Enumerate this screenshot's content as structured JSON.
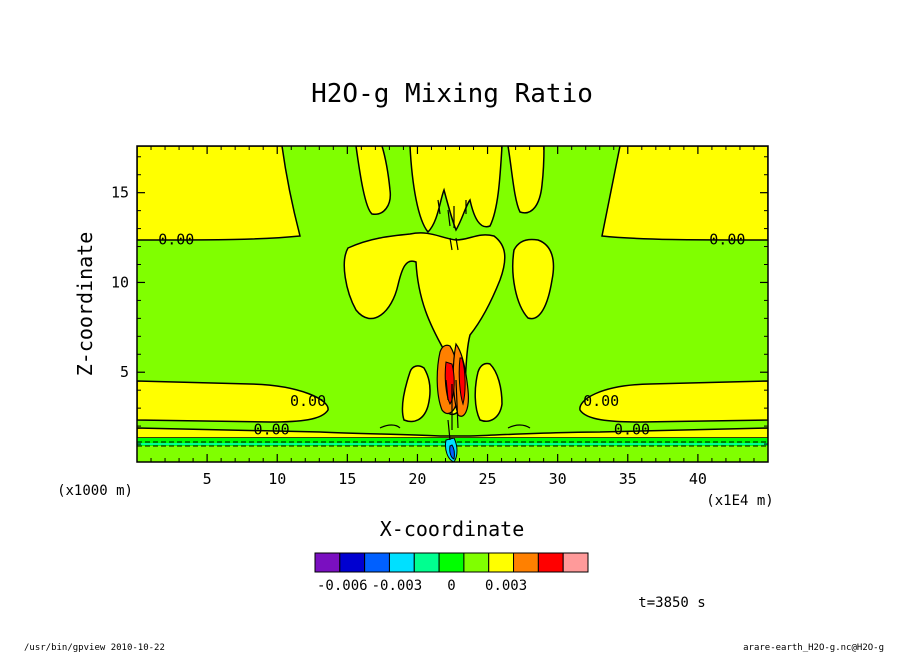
{
  "chart_data": {
    "type": "contour",
    "title": "H2O-g Mixing Ratio",
    "xlabel": "X-coordinate",
    "ylabel": "Z-coordinate",
    "x_unit": "(x1E4 m)",
    "y_unit": "(x1000 m)",
    "xlim": [
      0,
      45
    ],
    "ylim": [
      0,
      17.6
    ],
    "x_ticks": [
      "5",
      "10",
      "15",
      "20",
      "25",
      "30",
      "35",
      "40"
    ],
    "x_tick_values": [
      5,
      10,
      15,
      20,
      25,
      30,
      35,
      40
    ],
    "y_ticks": [
      "5",
      "10",
      "15"
    ],
    "y_tick_values": [
      5,
      10,
      15
    ],
    "contour_labels": [
      {
        "text": "0.00",
        "x": 2.8,
        "z": 12.4
      },
      {
        "text": "0.00",
        "x": 42.1,
        "z": 12.4
      },
      {
        "text": "0.00",
        "x": 12.2,
        "z": 3.4
      },
      {
        "text": "0.00",
        "x": 33.1,
        "z": 3.4
      },
      {
        "text": "0.00",
        "x": 9.6,
        "z": 1.8
      },
      {
        "text": "0.00",
        "x": 35.3,
        "z": 1.8
      }
    ],
    "colorbar": {
      "colors": [
        "#7a0fc0",
        "#0000d0",
        "#0060ff",
        "#00e0ff",
        "#00ff90",
        "#00ff00",
        "#80ff00",
        "#ffff00",
        "#ff8000",
        "#ff0000",
        "#ff9a9a"
      ],
      "tick_labels": [
        "-0.006",
        "-0.003",
        "0",
        "0.003"
      ],
      "tick_values": [
        -0.006,
        -0.003,
        0,
        0.003
      ],
      "boundaries": [
        -0.0075,
        -0.006,
        -0.0045,
        -0.003,
        -0.0015,
        0,
        0.0015,
        0.003
      ]
    },
    "time_label": "t=3850 s",
    "colors": {
      "green": "#80ff00",
      "yellow": "#ffff00",
      "orange": "#ff8000",
      "red": "#ff0000",
      "bright_green": "#00ff00",
      "teal": "#00ff90",
      "cyan": "#00e0ff",
      "blue": "#0060ff"
    }
  },
  "footer": {
    "left": "/usr/bin/gpview  2010-10-22",
    "right": "arare-earth_H2O-g.nc@H2O-g"
  }
}
